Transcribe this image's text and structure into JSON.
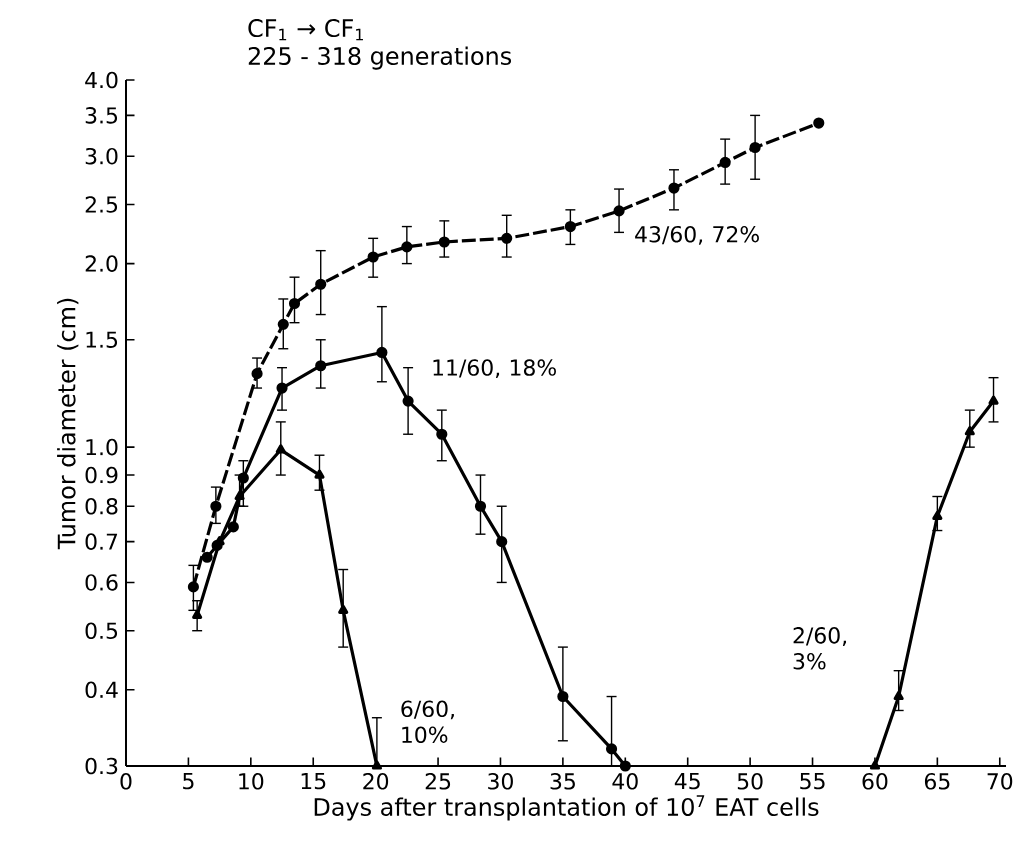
{
  "chart_data": {
    "type": "line",
    "title": "CF$_{1}$ → CF$_{1}$",
    "subtitle": "225 - 318 generations",
    "xlabel": "Days after transplantation of 10$^{7}$ EAT cells",
    "ylabel": "Tumor diameter (cm)",
    "log": "y",
    "xlim": [
      0,
      70.5
    ],
    "ylim": [
      0.3,
      4.0
    ],
    "xticks": [
      0,
      5,
      10,
      15,
      20,
      25,
      30,
      35,
      40,
      45,
      50,
      55,
      60,
      65,
      70
    ],
    "yticks": [
      0.3,
      0.4,
      0.5,
      0.6,
      0.7,
      0.8,
      0.9,
      {
        "value": 1.0,
        "label": "1.0"
      },
      1.5,
      {
        "value": 2.0,
        "label": "2.0"
      },
      2.5,
      {
        "value": 3.0,
        "label": "3.0"
      },
      3.5,
      {
        "value": 4.0,
        "label": "4.0"
      }
    ],
    "grid": false,
    "legend": false,
    "series": [
      {
        "name": "43/60, 72%",
        "color": "#000000",
        "marker": "circle",
        "line_style": "dashed",
        "x": [
          5.4,
          7.2,
          10.5,
          12.6,
          13.5,
          15.6,
          19.8,
          22.5,
          25.5,
          30.5,
          35.6,
          39.5,
          43.9,
          48,
          50.4,
          55.5
        ],
        "values": [
          0.59,
          0.8,
          1.32,
          1.59,
          1.72,
          1.85,
          2.05,
          2.13,
          2.17,
          2.2,
          2.3,
          2.44,
          2.66,
          2.93,
          3.1,
          3.4
        ],
        "errors": [
          [
            0.54,
            0.64
          ],
          [
            0.75,
            0.86
          ],
          [
            1.25,
            1.4
          ],
          [
            1.45,
            1.75
          ],
          [
            1.6,
            1.9
          ],
          [
            1.65,
            2.1
          ],
          [
            1.9,
            2.2
          ],
          [
            2.0,
            2.3
          ],
          [
            2.05,
            2.35
          ],
          [
            2.05,
            2.4
          ],
          [
            2.15,
            2.45
          ],
          [
            2.25,
            2.65
          ],
          [
            2.45,
            2.85
          ],
          [
            2.7,
            3.2
          ],
          [
            2.75,
            3.5
          ],
          null
        ]
      },
      {
        "name": "11/60, 18%",
        "color": "#000000",
        "marker": "circle",
        "line_style": "solid",
        "x": [
          6.5,
          7.3,
          8.6,
          9.4,
          12.5,
          15.6,
          20.5,
          22.6,
          25.3,
          28.4,
          30.1,
          35,
          38.9,
          40
        ],
        "values": [
          0.66,
          0.69,
          0.74,
          0.89,
          1.25,
          1.36,
          1.43,
          1.19,
          1.05,
          0.8,
          0.7,
          0.39,
          0.32,
          0.3
        ],
        "errors": [
          null,
          null,
          null,
          [
            0.8,
            0.95
          ],
          [
            1.15,
            1.35
          ],
          [
            1.25,
            1.5
          ],
          [
            1.28,
            1.7
          ],
          [
            1.05,
            1.35
          ],
          [
            0.95,
            1.15
          ],
          [
            0.72,
            0.9
          ],
          [
            0.6,
            0.8
          ],
          [
            0.33,
            0.47
          ],
          [
            0.3,
            0.39
          ],
          null
        ]
      },
      {
        "name": "6/60, 10%",
        "color": "#000000",
        "marker": "triangle",
        "line_style": "solid",
        "x": [
          5.7,
          7.5,
          9.1,
          12.4,
          15.5,
          17.4,
          20.1
        ],
        "values": [
          0.53,
          0.7,
          0.83,
          0.99,
          0.9,
          0.54,
          0.3
        ],
        "errors": [
          [
            0.5,
            0.56
          ],
          null,
          [
            0.8,
            0.9
          ],
          [
            0.9,
            1.1
          ],
          [
            0.85,
            0.97
          ],
          [
            0.47,
            0.63
          ],
          [
            0.3,
            0.36
          ]
        ]
      },
      {
        "name": "2/60, 3%",
        "color": "#000000",
        "marker": "triangle",
        "line_style": "solid",
        "x": [
          60,
          61.9,
          65,
          67.6,
          69.5
        ],
        "values": [
          0.3,
          0.39,
          0.77,
          1.06,
          1.19
        ],
        "errors": [
          null,
          [
            0.37,
            0.43
          ],
          [
            0.73,
            0.83
          ],
          [
            1.0,
            1.15
          ],
          [
            1.1,
            1.3
          ]
        ]
      }
    ]
  }
}
